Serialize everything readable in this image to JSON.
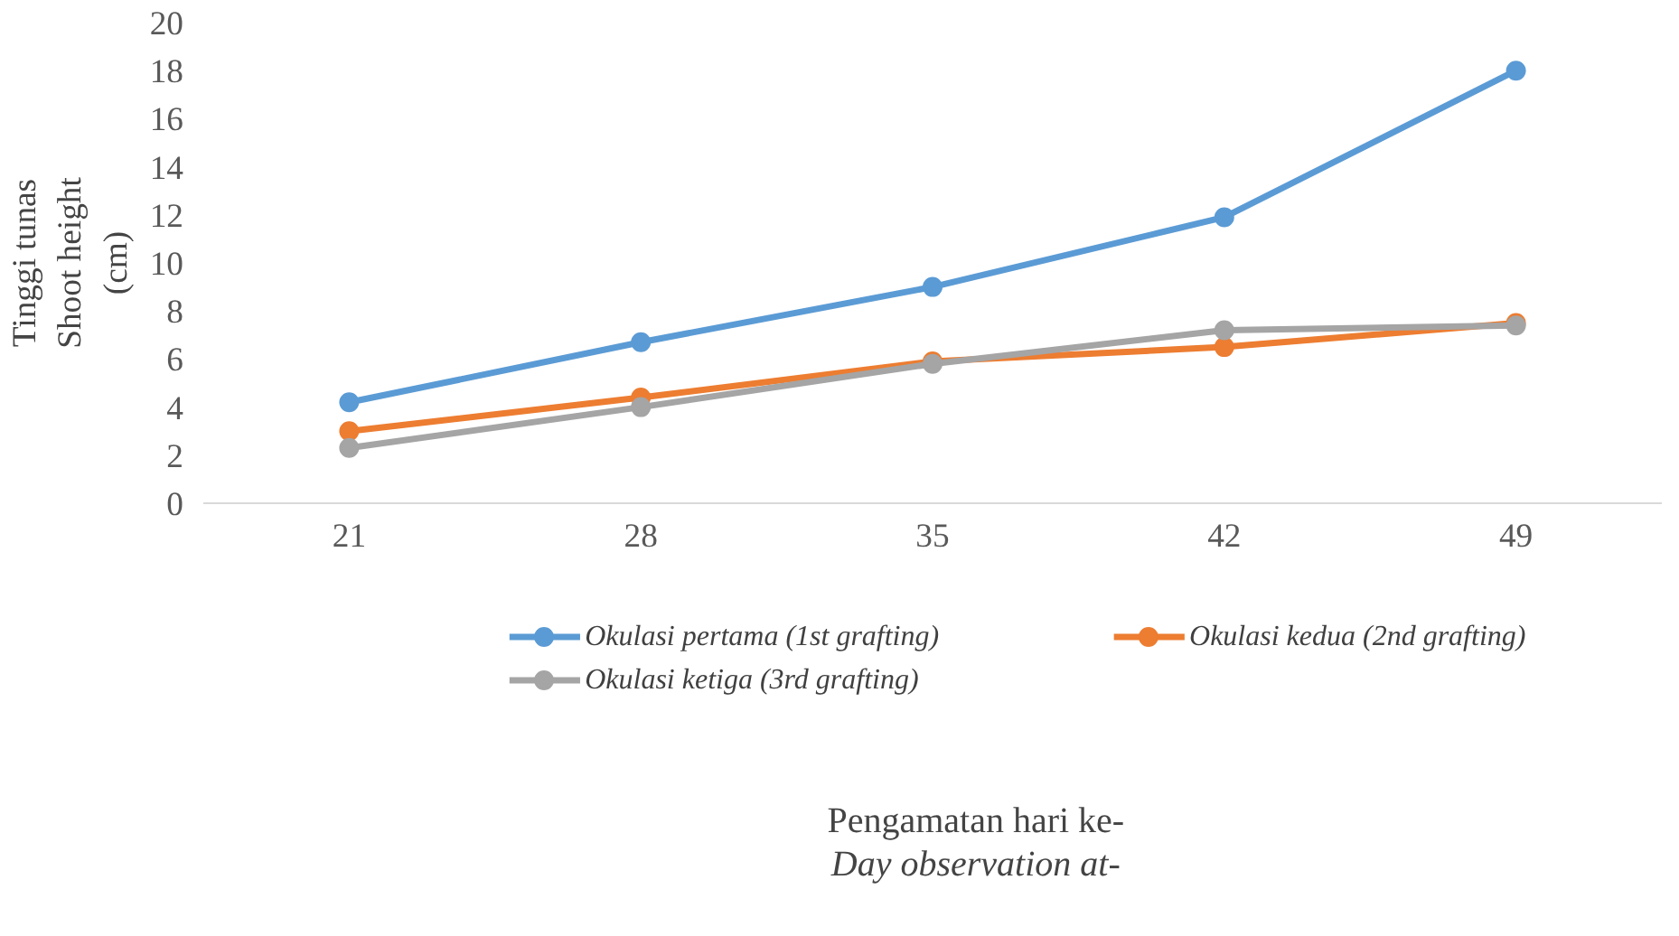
{
  "chart_data": {
    "type": "line",
    "annotations": [
      "Pengamatan hari ke-\nDay observation at-"
    ],
    "ylabel": "Tinggi tunas\nShoot height\n(cm)",
    "categories": [
      "21",
      "28",
      "35",
      "42",
      "49"
    ],
    "series": [
      {
        "name": "Okulasi pertama (1st grafting)",
        "color": "#5b9bd5",
        "values": [
          4.2,
          6.7,
          9.0,
          11.9,
          18.0
        ]
      },
      {
        "name": "Okulasi kedua (2nd grafting)",
        "color": "#ed7d31",
        "values": [
          3.0,
          4.4,
          5.9,
          6.5,
          7.5
        ]
      },
      {
        "name": "Okulasi ketiga (3rd grafting)",
        "color": "#a5a5a5",
        "values": [
          2.3,
          4.0,
          5.8,
          7.2,
          7.4
        ]
      }
    ],
    "ylim": [
      0,
      20
    ],
    "yticks": [
      0,
      2,
      4,
      6,
      8,
      10,
      12,
      14,
      16,
      18,
      20
    ],
    "grid": false,
    "legend": "bottom",
    "marker": "circle",
    "line_style": "solid"
  }
}
